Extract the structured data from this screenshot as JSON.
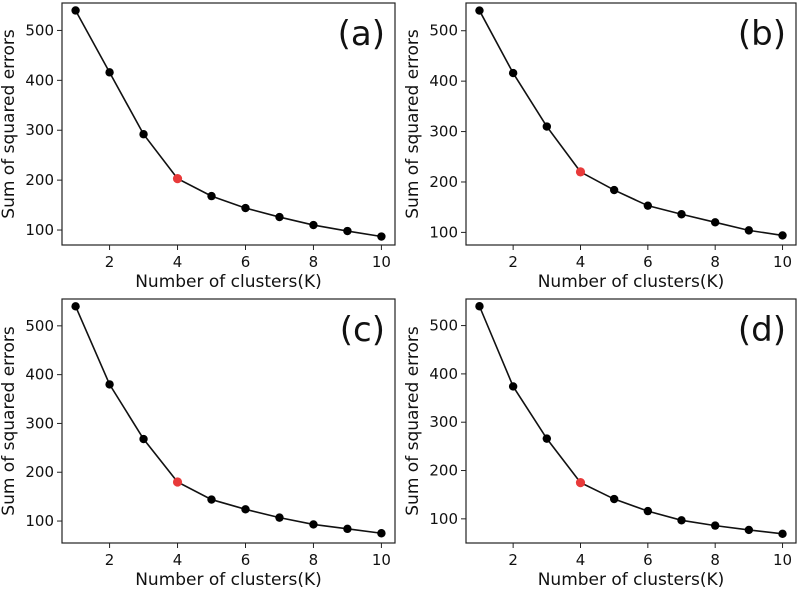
{
  "chart_data": [
    {
      "type": "line",
      "panel_label": "(a)",
      "xlabel": "Number of clusters(K)",
      "ylabel": "Sum of squared errors",
      "x": [
        1,
        2,
        3,
        4,
        5,
        6,
        7,
        8,
        9,
        10
      ],
      "series": [
        {
          "values": [
            540,
            416,
            292,
            203,
            168,
            144,
            126,
            110,
            98,
            87
          ]
        }
      ],
      "highlight": {
        "x": 4,
        "y": 203,
        "color": "#e83a3a"
      },
      "xlim": [
        0.6,
        10.4
      ],
      "ylim": [
        70,
        555
      ],
      "xticks": [
        2,
        4,
        6,
        8,
        10
      ],
      "yticks": [
        100,
        200,
        300,
        400,
        500
      ],
      "grid": false
    },
    {
      "type": "line",
      "panel_label": "(b)",
      "xlabel": "Number of clusters(K)",
      "ylabel": "Sum of squared errors",
      "x": [
        1,
        2,
        3,
        4,
        5,
        6,
        7,
        8,
        9,
        10
      ],
      "series": [
        {
          "values": [
            540,
            416,
            310,
            220,
            184,
            153,
            136,
            120,
            104,
            94
          ]
        }
      ],
      "highlight": {
        "x": 4,
        "y": 220,
        "color": "#e83a3a"
      },
      "xlim": [
        0.6,
        10.4
      ],
      "ylim": [
        75,
        555
      ],
      "xticks": [
        2,
        4,
        6,
        8,
        10
      ],
      "yticks": [
        100,
        200,
        300,
        400,
        500
      ],
      "grid": false
    },
    {
      "type": "line",
      "panel_label": "(c)",
      "xlabel": "Number of clusters(K)",
      "ylabel": "Sum of squared errors",
      "x": [
        1,
        2,
        3,
        4,
        5,
        6,
        7,
        8,
        9,
        10
      ],
      "series": [
        {
          "values": [
            540,
            380,
            268,
            180,
            144,
            124,
            107,
            93,
            84,
            75
          ]
        }
      ],
      "highlight": {
        "x": 4,
        "y": 180,
        "color": "#e83a3a"
      },
      "xlim": [
        0.6,
        10.4
      ],
      "ylim": [
        55,
        555
      ],
      "xticks": [
        2,
        4,
        6,
        8,
        10
      ],
      "yticks": [
        100,
        200,
        300,
        400,
        500
      ],
      "grid": false
    },
    {
      "type": "line",
      "panel_label": "(d)",
      "xlabel": "Number of clusters(K)",
      "ylabel": "Sum of squared errors",
      "x": [
        1,
        2,
        3,
        4,
        5,
        6,
        7,
        8,
        9,
        10
      ],
      "series": [
        {
          "values": [
            540,
            374,
            266,
            175,
            141,
            116,
            97,
            86,
            77,
            69
          ]
        }
      ],
      "highlight": {
        "x": 4,
        "y": 175,
        "color": "#e83a3a"
      },
      "xlim": [
        0.6,
        10.4
      ],
      "ylim": [
        50,
        555
      ],
      "xticks": [
        2,
        4,
        6,
        8,
        10
      ],
      "yticks": [
        100,
        200,
        300,
        400,
        500
      ],
      "grid": false
    }
  ]
}
